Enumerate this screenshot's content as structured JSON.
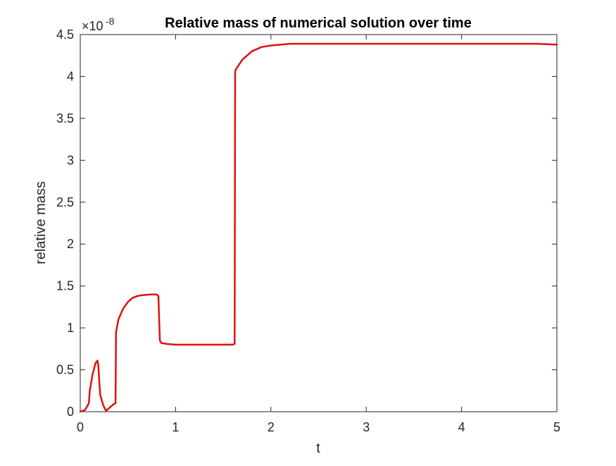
{
  "chart_data": {
    "type": "line",
    "title": "Relative mass of numerical solution over time",
    "xlabel": "t",
    "ylabel": "relative mass",
    "xlim": [
      0,
      5
    ],
    "ylim": [
      0,
      4.5
    ],
    "x_ticks": [
      0,
      1,
      2,
      3,
      4,
      5
    ],
    "y_ticks": [
      0,
      0.5,
      1,
      1.5,
      2,
      2.5,
      3,
      3.5,
      4,
      4.5
    ],
    "y_exponent": {
      "base": "×10",
      "power": "-8"
    },
    "grid": false,
    "series": [
      {
        "color": "#e01010",
        "x": [
          0,
          0.05,
          0.08,
          0.09,
          0.1,
          0.13,
          0.16,
          0.18,
          0.19,
          0.2,
          0.21,
          0.24,
          0.27,
          0.3,
          0.35,
          0.37,
          0.375,
          0.4,
          0.45,
          0.5,
          0.55,
          0.6,
          0.65,
          0.7,
          0.75,
          0.8,
          0.82,
          0.835,
          0.85,
          0.9,
          1.0,
          1.2,
          1.4,
          1.6,
          1.62,
          1.625,
          1.63,
          1.7,
          1.8,
          1.9,
          2.0,
          2.2,
          2.5,
          3.0,
          3.5,
          4.0,
          4.5,
          4.8,
          5.0
        ],
        "y": [
          0,
          0.02,
          0.08,
          0.1,
          0.25,
          0.45,
          0.58,
          0.61,
          0.55,
          0.35,
          0.2,
          0.08,
          0.01,
          0.04,
          0.09,
          0.1,
          0.95,
          1.1,
          1.23,
          1.31,
          1.36,
          1.38,
          1.39,
          1.395,
          1.4,
          1.4,
          1.38,
          0.85,
          0.82,
          0.81,
          0.8,
          0.8,
          0.8,
          0.8,
          0.81,
          4.05,
          4.08,
          4.2,
          4.3,
          4.35,
          4.37,
          4.39,
          4.39,
          4.39,
          4.39,
          4.39,
          4.39,
          4.39,
          4.38
        ]
      }
    ]
  }
}
